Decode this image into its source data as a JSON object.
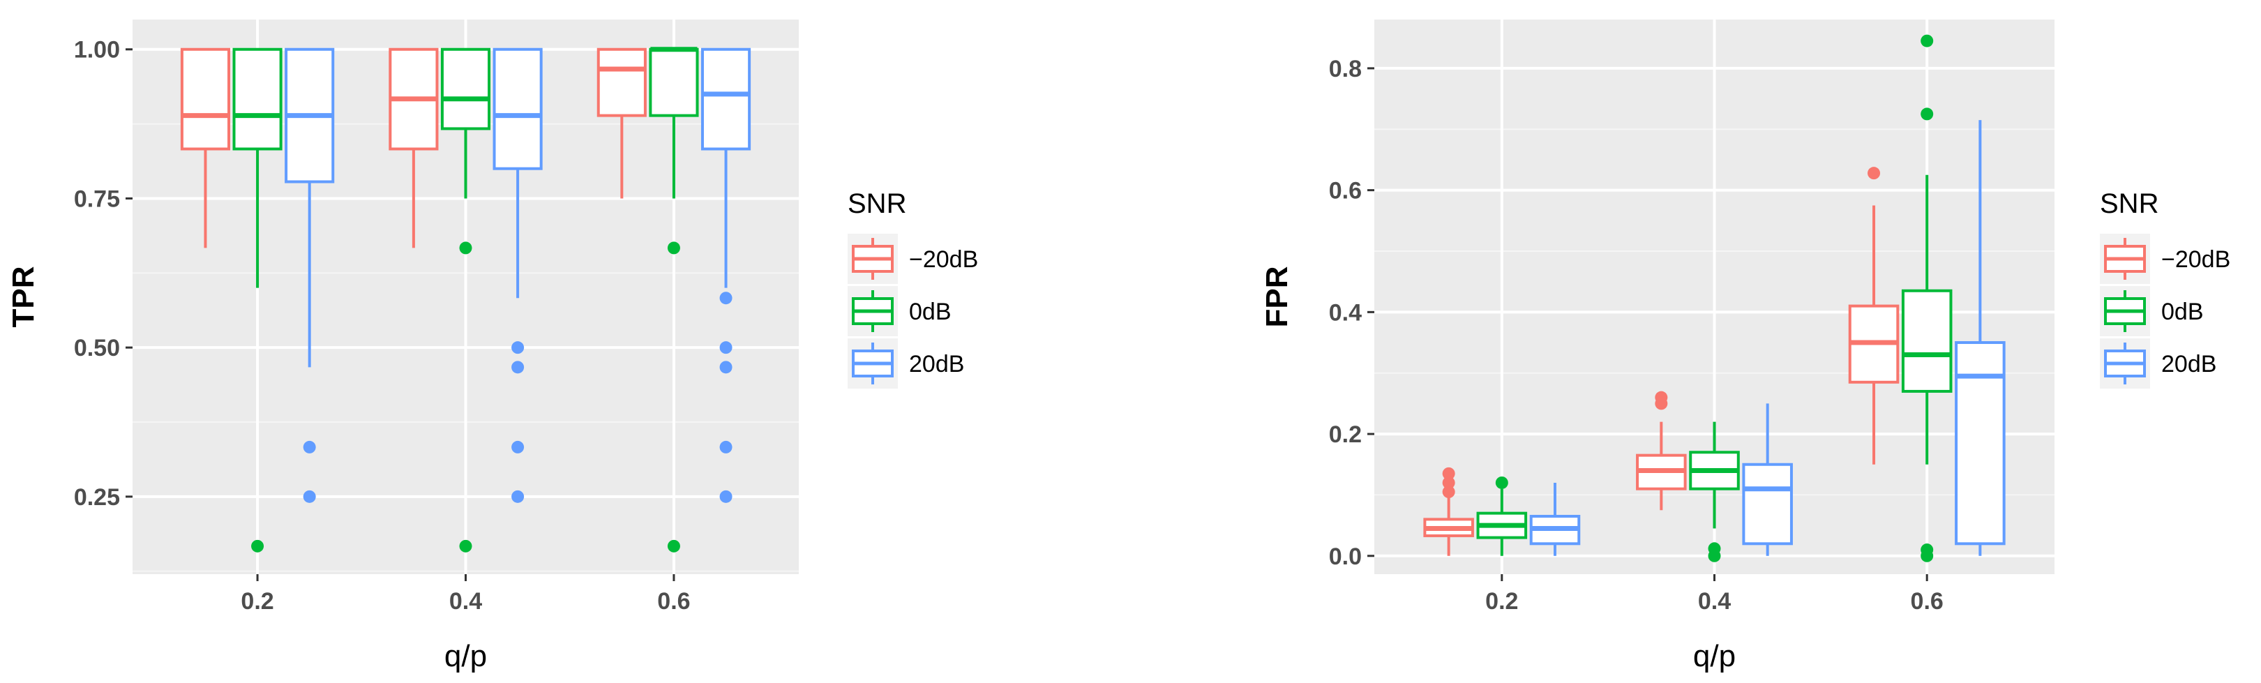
{
  "chart_data": [
    {
      "type": "box",
      "xlabel": "q/p",
      "ylabel": "TPR",
      "categories": [
        "0.2",
        "0.4",
        "0.6"
      ],
      "ylim": [
        0.12,
        1.05
      ],
      "yticks": [
        0.25,
        0.5,
        0.75,
        1.0
      ],
      "ytick_labels": [
        "0.25",
        "0.50",
        "0.75",
        "1.00"
      ],
      "grid": true,
      "legend": {
        "title": "SNR",
        "position": "right"
      },
      "series": [
        {
          "name": "−20dB",
          "color": "#F8766D",
          "boxes": [
            {
              "q1": 0.833,
              "median": 0.889,
              "q3": 1.0,
              "whisker_low": 0.667,
              "whisker_high": 1.0,
              "outliers": []
            },
            {
              "q1": 0.833,
              "median": 0.917,
              "q3": 1.0,
              "whisker_low": 0.667,
              "whisker_high": 1.0,
              "outliers": []
            },
            {
              "q1": 0.889,
              "median": 0.967,
              "q3": 1.0,
              "whisker_low": 0.75,
              "whisker_high": 1.0,
              "outliers": []
            }
          ]
        },
        {
          "name": "0dB",
          "color": "#00BA38",
          "boxes": [
            {
              "q1": 0.833,
              "median": 0.889,
              "q3": 1.0,
              "whisker_low": 0.6,
              "whisker_high": 1.0,
              "outliers": [
                0.167
              ]
            },
            {
              "q1": 0.867,
              "median": 0.917,
              "q3": 1.0,
              "whisker_low": 0.75,
              "whisker_high": 1.0,
              "outliers": [
                0.667,
                0.167
              ]
            },
            {
              "q1": 0.889,
              "median": 1.0,
              "q3": 1.0,
              "whisker_low": 0.75,
              "whisker_high": 1.0,
              "outliers": [
                0.667,
                0.167
              ]
            }
          ]
        },
        {
          "name": "20dB",
          "color": "#619CFF",
          "boxes": [
            {
              "q1": 0.778,
              "median": 0.889,
              "q3": 1.0,
              "whisker_low": 0.467,
              "whisker_high": 1.0,
              "outliers": [
                0.333,
                0.25
              ]
            },
            {
              "q1": 0.8,
              "median": 0.889,
              "q3": 1.0,
              "whisker_low": 0.583,
              "whisker_high": 1.0,
              "outliers": [
                0.5,
                0.467,
                0.333,
                0.25
              ]
            },
            {
              "q1": 0.833,
              "median": 0.925,
              "q3": 1.0,
              "whisker_low": 0.6,
              "whisker_high": 1.0,
              "outliers": [
                0.583,
                0.5,
                0.467,
                0.333,
                0.25
              ]
            }
          ]
        }
      ]
    },
    {
      "type": "box",
      "xlabel": "q/p",
      "ylabel": "FPR",
      "categories": [
        "0.2",
        "0.4",
        "0.6"
      ],
      "ylim": [
        -0.03,
        0.88
      ],
      "yticks": [
        0.0,
        0.2,
        0.4,
        0.6,
        0.8
      ],
      "ytick_labels": [
        "0.0",
        "0.2",
        "0.4",
        "0.6",
        "0.8"
      ],
      "grid": true,
      "legend": {
        "title": "SNR",
        "position": "right"
      },
      "series": [
        {
          "name": "−20dB",
          "color": "#F8766D",
          "boxes": [
            {
              "q1": 0.033,
              "median": 0.045,
              "q3": 0.06,
              "whisker_low": 0.0,
              "whisker_high": 0.1,
              "outliers": [
                0.135,
                0.12,
                0.105
              ]
            },
            {
              "q1": 0.11,
              "median": 0.14,
              "q3": 0.165,
              "whisker_low": 0.075,
              "whisker_high": 0.22,
              "outliers": [
                0.26,
                0.25
              ]
            },
            {
              "q1": 0.285,
              "median": 0.35,
              "q3": 0.41,
              "whisker_low": 0.15,
              "whisker_high": 0.575,
              "outliers": [
                0.628
              ]
            }
          ]
        },
        {
          "name": "0dB",
          "color": "#00BA38",
          "boxes": [
            {
              "q1": 0.03,
              "median": 0.05,
              "q3": 0.07,
              "whisker_low": 0.0,
              "whisker_high": 0.11,
              "outliers": [
                0.12
              ]
            },
            {
              "q1": 0.11,
              "median": 0.14,
              "q3": 0.17,
              "whisker_low": 0.045,
              "whisker_high": 0.22,
              "outliers": [
                0.012,
                0.0
              ]
            },
            {
              "q1": 0.27,
              "median": 0.33,
              "q3": 0.435,
              "whisker_low": 0.15,
              "whisker_high": 0.625,
              "outliers": [
                0.845,
                0.725,
                0.01,
                0.0
              ]
            }
          ]
        },
        {
          "name": "20dB",
          "color": "#619CFF",
          "boxes": [
            {
              "q1": 0.02,
              "median": 0.045,
              "q3": 0.065,
              "whisker_low": 0.0,
              "whisker_high": 0.12,
              "outliers": []
            },
            {
              "q1": 0.02,
              "median": 0.11,
              "q3": 0.15,
              "whisker_low": 0.0,
              "whisker_high": 0.25,
              "outliers": []
            },
            {
              "q1": 0.02,
              "median": 0.295,
              "q3": 0.35,
              "whisker_low": 0.0,
              "whisker_high": 0.715,
              "outliers": []
            }
          ]
        }
      ]
    }
  ]
}
